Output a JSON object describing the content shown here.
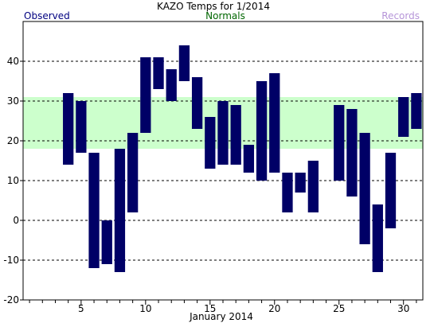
{
  "chart_data": {
    "type": "bar",
    "title": "KAZO Temps for  1/2014",
    "legend": {
      "observed": "Observed",
      "normals": "Normals",
      "records": "Records",
      "placement": "top"
    },
    "xlabel": "January 2014",
    "ylabel": "",
    "xlim": [
      0.5,
      31.5
    ],
    "ylim": [
      -20,
      50
    ],
    "x_ticks": [
      5,
      10,
      15,
      20,
      25,
      30
    ],
    "y_ticks": [
      -20,
      -10,
      0,
      10,
      20,
      30,
      40
    ],
    "grid": "dashed horizontal",
    "normals_band": {
      "low": 18,
      "high": 31
    },
    "series": [
      {
        "name": "Observed",
        "days": [
          4,
          5,
          6,
          7,
          8,
          9,
          10,
          11,
          12,
          13,
          14,
          15,
          16,
          17,
          18,
          19,
          20,
          21,
          22,
          23,
          25,
          26,
          27,
          28,
          29,
          30,
          31
        ],
        "low": [
          14,
          17,
          -12,
          -11,
          -13,
          2,
          22,
          33,
          30,
          35,
          23,
          13,
          14,
          14,
          12,
          10,
          12,
          2,
          7,
          2,
          10,
          6,
          -6,
          -13,
          -2,
          21,
          23
        ],
        "high": [
          32,
          30,
          17,
          0,
          18,
          22,
          41,
          41,
          38,
          44,
          36,
          26,
          30,
          29,
          19,
          35,
          37,
          12,
          12,
          15,
          29,
          28,
          22,
          4,
          17,
          31,
          32
        ]
      }
    ],
    "colors": {
      "observed": "#000066",
      "normals_band": "#ccffcc",
      "observed_label": "#000080",
      "normals_label": "#006600",
      "records_label": "#b695d8"
    }
  }
}
